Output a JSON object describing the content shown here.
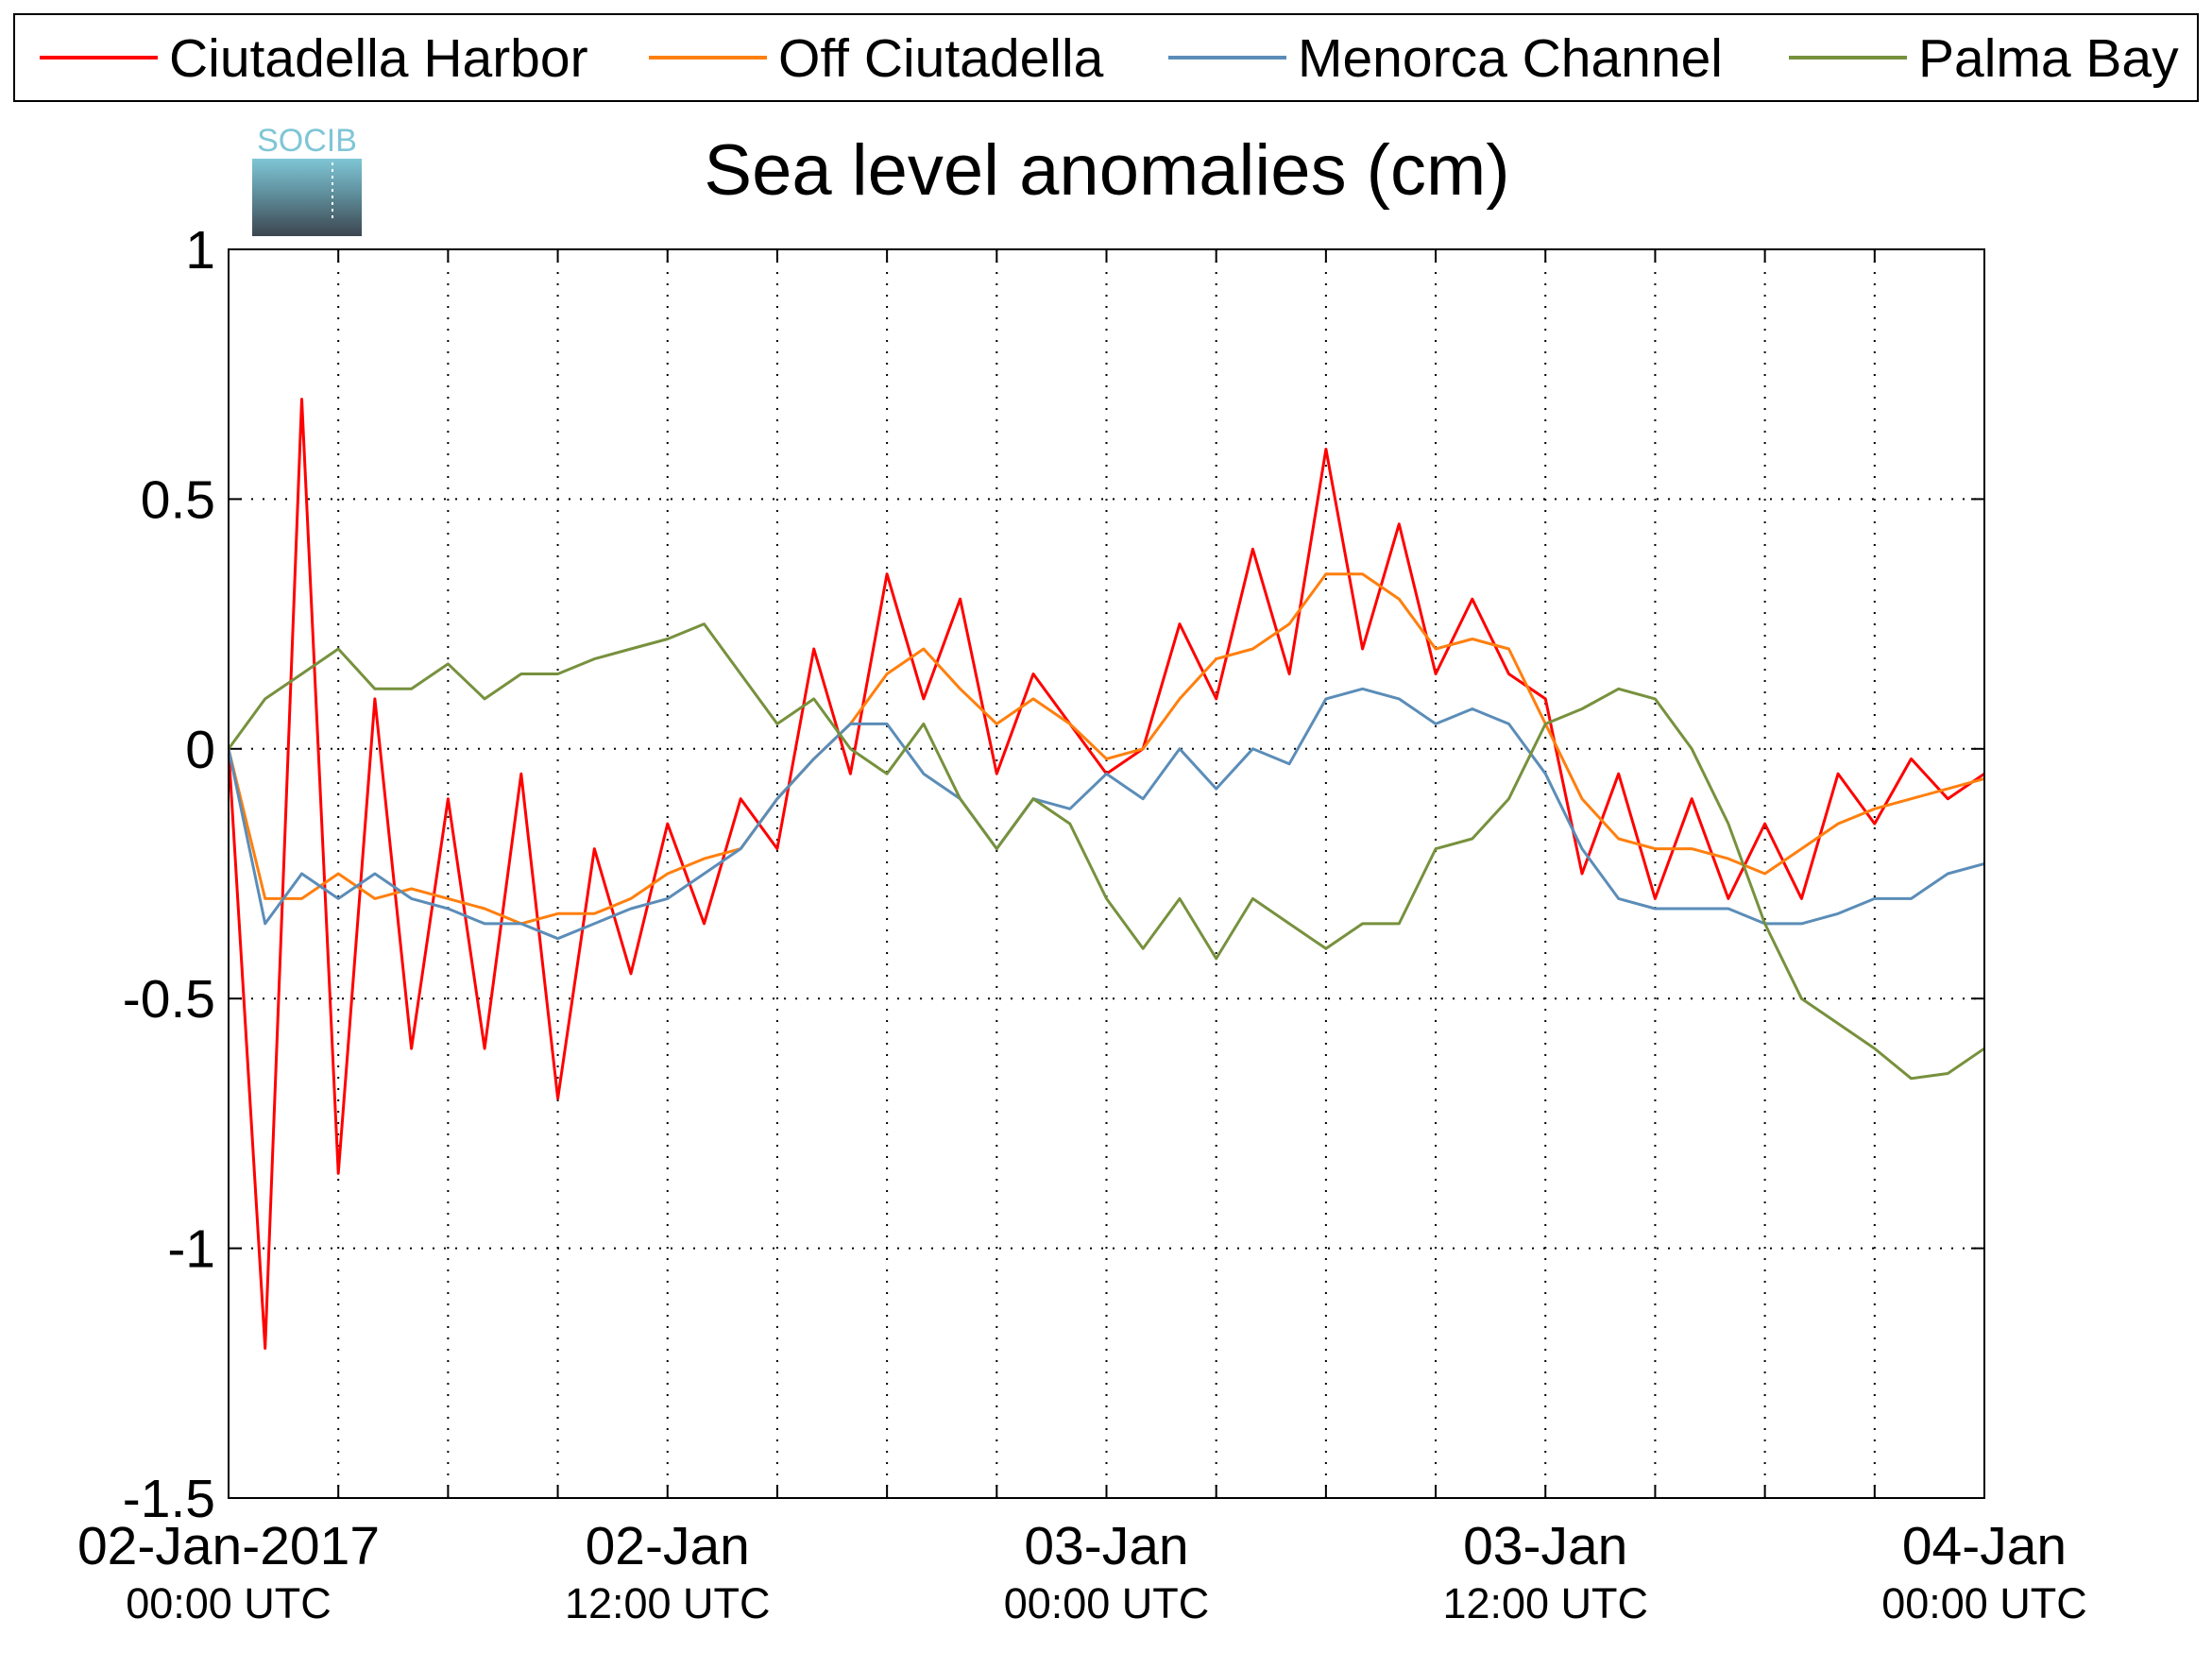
{
  "chart_data": {
    "type": "line",
    "title": "Sea level anomalies (cm)",
    "logo_text": "SOCIB",
    "x": [
      "2017-01-02T00:00",
      "2017-01-02T01:00",
      "2017-01-02T02:00",
      "2017-01-02T03:00",
      "2017-01-02T04:00",
      "2017-01-02T05:00",
      "2017-01-02T06:00",
      "2017-01-02T07:00",
      "2017-01-02T08:00",
      "2017-01-02T09:00",
      "2017-01-02T10:00",
      "2017-01-02T11:00",
      "2017-01-02T12:00",
      "2017-01-02T13:00",
      "2017-01-02T14:00",
      "2017-01-02T15:00",
      "2017-01-02T16:00",
      "2017-01-02T17:00",
      "2017-01-02T18:00",
      "2017-01-02T19:00",
      "2017-01-02T20:00",
      "2017-01-02T21:00",
      "2017-01-02T22:00",
      "2017-01-02T23:00",
      "2017-01-03T00:00",
      "2017-01-03T01:00",
      "2017-01-03T02:00",
      "2017-01-03T03:00",
      "2017-01-03T04:00",
      "2017-01-03T05:00",
      "2017-01-03T06:00",
      "2017-01-03T07:00",
      "2017-01-03T08:00",
      "2017-01-03T09:00",
      "2017-01-03T10:00",
      "2017-01-03T11:00",
      "2017-01-03T12:00",
      "2017-01-03T13:00",
      "2017-01-03T14:00",
      "2017-01-03T15:00",
      "2017-01-03T16:00",
      "2017-01-03T17:00",
      "2017-01-03T18:00",
      "2017-01-03T19:00",
      "2017-01-03T20:00",
      "2017-01-03T21:00",
      "2017-01-03T22:00",
      "2017-01-03T23:00",
      "2017-01-04T00:00"
    ],
    "series": [
      {
        "name": "Ciutadella Harbor",
        "color": "#ff0000",
        "width": 3,
        "values": [
          0.0,
          -1.2,
          0.7,
          -0.85,
          0.1,
          -0.6,
          -0.1,
          -0.6,
          -0.05,
          -0.7,
          -0.2,
          -0.45,
          -0.15,
          -0.35,
          -0.1,
          -0.2,
          0.2,
          -0.05,
          0.35,
          0.1,
          0.3,
          -0.05,
          0.15,
          0.05,
          -0.05,
          0.0,
          0.25,
          0.1,
          0.4,
          0.15,
          0.6,
          0.2,
          0.45,
          0.15,
          0.3,
          0.15,
          0.1,
          -0.25,
          -0.05,
          -0.3,
          -0.1,
          -0.3,
          -0.15,
          -0.3,
          -0.05,
          -0.15,
          -0.02,
          -0.1,
          -0.05
        ]
      },
      {
        "name": "Off Ciutadella",
        "color": "#ff7f0e",
        "width": 3,
        "values": [
          0.0,
          -0.3,
          -0.3,
          -0.25,
          -0.3,
          -0.28,
          -0.3,
          -0.32,
          -0.35,
          -0.33,
          -0.33,
          -0.3,
          -0.25,
          -0.22,
          -0.2,
          -0.1,
          -0.02,
          0.05,
          0.15,
          0.2,
          0.12,
          0.05,
          0.1,
          0.05,
          -0.02,
          0.0,
          0.1,
          0.18,
          0.2,
          0.25,
          0.35,
          0.35,
          0.3,
          0.2,
          0.22,
          0.2,
          0.05,
          -0.1,
          -0.18,
          -0.2,
          -0.2,
          -0.22,
          -0.25,
          -0.2,
          -0.15,
          -0.12,
          -0.1,
          -0.08,
          -0.06
        ]
      },
      {
        "name": "Menorca Channel",
        "color": "#5b8db8",
        "width": 3,
        "values": [
          0.0,
          -0.35,
          -0.25,
          -0.3,
          -0.25,
          -0.3,
          -0.32,
          -0.35,
          -0.35,
          -0.38,
          -0.35,
          -0.32,
          -0.3,
          -0.25,
          -0.2,
          -0.1,
          -0.02,
          0.05,
          0.05,
          -0.05,
          -0.1,
          -0.2,
          -0.1,
          -0.12,
          -0.05,
          -0.1,
          0.0,
          -0.08,
          0.0,
          -0.03,
          0.1,
          0.12,
          0.1,
          0.05,
          0.08,
          0.05,
          -0.05,
          -0.2,
          -0.3,
          -0.32,
          -0.32,
          -0.32,
          -0.35,
          -0.35,
          -0.33,
          -0.3,
          -0.3,
          -0.25,
          -0.23
        ]
      },
      {
        "name": "Palma Bay",
        "color": "#77913d",
        "width": 3,
        "values": [
          0.0,
          0.1,
          0.15,
          0.2,
          0.12,
          0.12,
          0.17,
          0.1,
          0.15,
          0.15,
          0.18,
          0.2,
          0.22,
          0.25,
          0.15,
          0.05,
          0.1,
          0.0,
          -0.05,
          0.05,
          -0.1,
          -0.2,
          -0.1,
          -0.15,
          -0.3,
          -0.4,
          -0.3,
          -0.42,
          -0.3,
          -0.35,
          -0.4,
          -0.35,
          -0.35,
          -0.2,
          -0.18,
          -0.1,
          0.05,
          0.08,
          0.12,
          0.1,
          0.0,
          -0.15,
          -0.35,
          -0.5,
          -0.55,
          -0.6,
          -0.66,
          -0.65,
          -0.6
        ]
      }
    ],
    "xlim": [
      "2017-01-02T00:00",
      "2017-01-04T00:00"
    ],
    "xticks": [
      {
        "value": "2017-01-02T00:00",
        "label": "02-Jan-2017",
        "sublabel": "00:00 UTC"
      },
      {
        "value": "2017-01-02T12:00",
        "label": "02-Jan",
        "sublabel": "12:00 UTC"
      },
      {
        "value": "2017-01-03T00:00",
        "label": "03-Jan",
        "sublabel": "00:00 UTC"
      },
      {
        "value": "2017-01-03T12:00",
        "label": "03-Jan",
        "sublabel": "12:00 UTC"
      },
      {
        "value": "2017-01-04T00:00",
        "label": "04-Jan",
        "sublabel": "00:00 UTC"
      }
    ],
    "xminor": [
      "2017-01-02T03:00",
      "2017-01-02T06:00",
      "2017-01-02T09:00",
      "2017-01-02T15:00",
      "2017-01-02T18:00",
      "2017-01-02T21:00",
      "2017-01-03T03:00",
      "2017-01-03T06:00",
      "2017-01-03T09:00",
      "2017-01-03T15:00",
      "2017-01-03T18:00",
      "2017-01-03T21:00"
    ],
    "ylim": [
      -1.5,
      1
    ],
    "yticks": [
      -1.5,
      -1,
      -0.5,
      0,
      0.5,
      1
    ],
    "grid": true,
    "legend": "top"
  }
}
